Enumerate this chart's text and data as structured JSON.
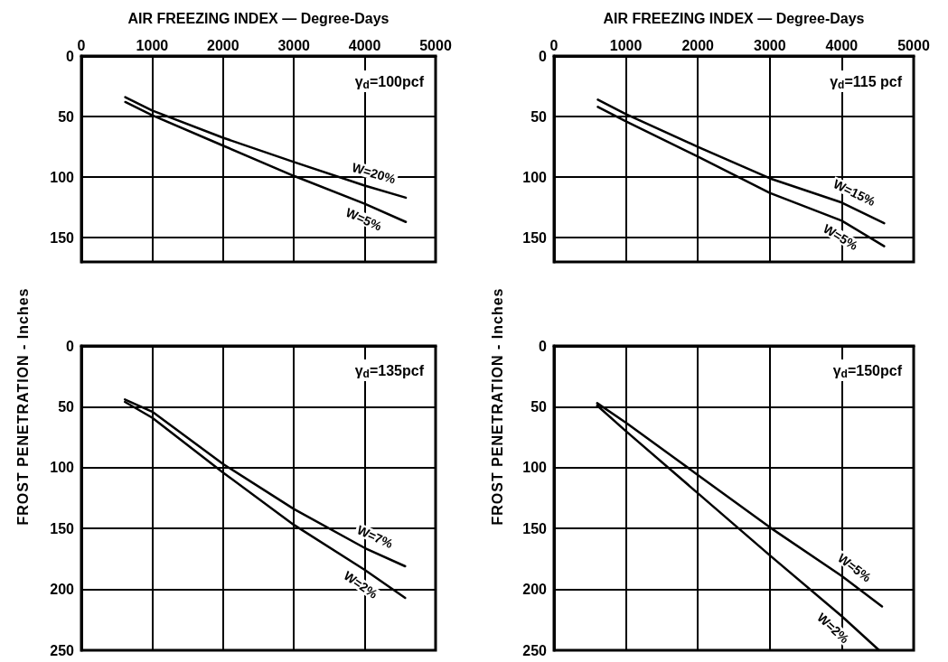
{
  "chart_data": [
    {
      "type": "line",
      "xlabel": "AIR FREEZING INDEX — Degree-Days",
      "ylabel": "FROST PENETRATION - Inches",
      "xlim": [
        0,
        5000
      ],
      "xticks": [
        0,
        1000,
        2000,
        3000,
        4000,
        5000
      ],
      "ylim": [
        170,
        0
      ],
      "yticks": [
        0,
        50,
        100,
        150
      ],
      "grid": true,
      "legend": false,
      "marker": "none",
      "annotations": [
        "γ$_{d}$=100pcf"
      ],
      "series": [
        {
          "name": "W=20%",
          "color": "#000000",
          "x": [
            620,
            1000,
            2000,
            3000,
            4000,
            4580
          ],
          "values": [
            34,
            45,
            67.5,
            87.5,
            107,
            117
          ]
        },
        {
          "name": "W=5%",
          "color": "#000000",
          "x": [
            620,
            1000,
            2000,
            3000,
            4000,
            4580
          ],
          "values": [
            38,
            49,
            74,
            99,
            122,
            137
          ]
        }
      ]
    },
    {
      "type": "line",
      "xlabel": "AIR FREEZING INDEX — Degree-Days",
      "ylabel": "FROST PENETRATION - Inches",
      "xlim": [
        0,
        5000
      ],
      "xticks": [
        0,
        1000,
        2000,
        3000,
        4000,
        5000
      ],
      "ylim": [
        170,
        0
      ],
      "yticks": [
        0,
        50,
        100,
        150
      ],
      "grid": true,
      "legend": false,
      "marker": "none",
      "annotations": [
        "γ$_{d}$=115 pcf"
      ],
      "series": [
        {
          "name": "W=15%",
          "color": "#000000",
          "x": [
            610,
            1000,
            2000,
            3000,
            4000,
            4590
          ],
          "values": [
            36,
            48,
            75,
            101,
            121,
            138
          ]
        },
        {
          "name": "W=5%",
          "color": "#000000",
          "x": [
            610,
            1000,
            2000,
            3000,
            4000,
            4590
          ],
          "values": [
            42,
            54,
            83,
            113,
            136,
            157
          ]
        }
      ]
    },
    {
      "type": "line",
      "xlim": [
        0,
        5000
      ],
      "xticks": [
        0,
        1000,
        2000,
        3000,
        4000,
        5000
      ],
      "ylim": [
        250,
        0
      ],
      "yticks": [
        0,
        50,
        100,
        150,
        200,
        250
      ],
      "grid": true,
      "legend": false,
      "marker": "none",
      "tick_labels": "y",
      "annotations": [
        "γ$_{d}$=135pcf"
      ],
      "series": [
        {
          "name": "W=7%",
          "color": "#000000",
          "x": [
            615,
            1000,
            2000,
            3000,
            4000,
            4570
          ],
          "values": [
            44,
            54,
            97,
            134,
            166,
            181
          ]
        },
        {
          "name": "W=2%",
          "color": "#000000",
          "x": [
            615,
            1000,
            2000,
            3000,
            4000,
            4570
          ],
          "values": [
            46,
            59,
            104,
            147,
            184,
            207
          ]
        }
      ]
    },
    {
      "type": "line",
      "xlim": [
        0,
        5000
      ],
      "xticks": [
        0,
        1000,
        2000,
        3000,
        4000,
        5000
      ],
      "ylim": [
        250,
        0
      ],
      "yticks": [
        0,
        50,
        100,
        150,
        200,
        250
      ],
      "grid": true,
      "legend": false,
      "marker": "none",
      "tick_labels": "y",
      "annotations": [
        "γ$_{d}$=150pcf"
      ],
      "series": [
        {
          "name": "W=5%",
          "color": "#000000",
          "x": [
            600,
            1000,
            2000,
            3000,
            4000,
            4560
          ],
          "values": [
            47,
            63,
            106,
            149,
            189,
            214
          ]
        },
        {
          "name": "W=2%",
          "color": "#000000",
          "x": [
            600,
            1000,
            2000,
            3000,
            4000,
            4520
          ],
          "values": [
            49,
            70,
            121,
            172,
            222,
            250
          ]
        }
      ]
    }
  ]
}
